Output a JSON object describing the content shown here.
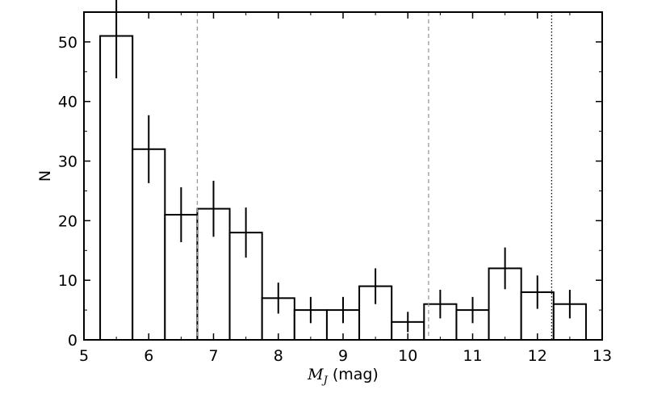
{
  "chart_data": {
    "type": "bar",
    "bin_edges": [
      5.25,
      5.75,
      6.25,
      6.75,
      7.25,
      7.75,
      8.25,
      8.75,
      9.25,
      9.75,
      10.25,
      10.75,
      11.25,
      11.75,
      12.25,
      12.75
    ],
    "bin_centers": [
      5.5,
      6.0,
      6.5,
      7.0,
      7.5,
      8.0,
      8.5,
      9.0,
      9.5,
      10.0,
      10.5,
      11.0,
      11.5,
      12.0,
      12.5
    ],
    "values": [
      51,
      32,
      21,
      22,
      18,
      7,
      5,
      5,
      9,
      3,
      6,
      5,
      12,
      8,
      6
    ],
    "errors": [
      7.1,
      5.7,
      4.6,
      4.7,
      4.2,
      2.6,
      2.2,
      2.2,
      3.0,
      1.7,
      2.4,
      2.2,
      3.5,
      2.8,
      2.4
    ],
    "xlabel": {
      "symbol": "M",
      "subscript": "J",
      "unit": "(mag)"
    },
    "ylabel": "N",
    "xlim": [
      5,
      13
    ],
    "ylim": [
      0,
      55
    ],
    "xticks": [
      "5",
      "6",
      "7",
      "8",
      "9",
      "10",
      "11",
      "12",
      "13"
    ],
    "yticks": [
      "0",
      "10",
      "20",
      "30",
      "40",
      "50"
    ],
    "vlines": [
      {
        "x": 6.75,
        "style": "dashed",
        "color": "#999999"
      },
      {
        "x": 10.32,
        "style": "dashed",
        "color": "#999999"
      },
      {
        "x": 12.22,
        "style": "dotted",
        "color": "#000000"
      }
    ],
    "grid": false,
    "colors": {
      "bars": "#000000",
      "fill": "#ffffff",
      "errorbars": "#000000"
    }
  }
}
